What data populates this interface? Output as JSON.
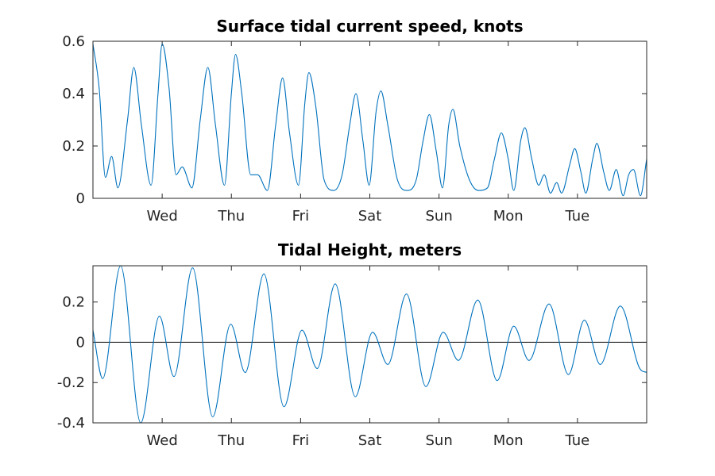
{
  "chart_data": [
    {
      "type": "line",
      "title": "Surface tidal current speed, knots",
      "xlabel": "",
      "ylabel": "",
      "xlim": [
        0,
        8
      ],
      "ylim": [
        0,
        0.6
      ],
      "xticks": [
        {
          "x": 1,
          "label": "Wed"
        },
        {
          "x": 2,
          "label": "Thu"
        },
        {
          "x": 3,
          "label": "Fri"
        },
        {
          "x": 4,
          "label": "Sat"
        },
        {
          "x": 5,
          "label": "Sun"
        },
        {
          "x": 6,
          "label": "Mon"
        },
        {
          "x": 7,
          "label": "Tue"
        }
      ],
      "yticks": [
        {
          "y": 0,
          "label": "0"
        },
        {
          "y": 0.2,
          "label": "0.2"
        },
        {
          "y": 0.4,
          "label": "0.4"
        },
        {
          "y": 0.6,
          "label": "0.6"
        }
      ],
      "zero_line": false,
      "series": [
        {
          "color": "#0072BD",
          "points": [
            [
              0.0,
              0.59
            ],
            [
              0.09,
              0.42
            ],
            [
              0.18,
              0.08
            ],
            [
              0.27,
              0.16
            ],
            [
              0.36,
              0.04
            ],
            [
              0.5,
              0.3
            ],
            [
              0.59,
              0.5
            ],
            [
              0.7,
              0.28
            ],
            [
              0.84,
              0.05
            ],
            [
              0.94,
              0.4
            ],
            [
              1.0,
              0.59
            ],
            [
              1.1,
              0.42
            ],
            [
              1.2,
              0.09
            ],
            [
              1.29,
              0.12
            ],
            [
              1.43,
              0.04
            ],
            [
              1.55,
              0.3
            ],
            [
              1.66,
              0.5
            ],
            [
              1.77,
              0.28
            ],
            [
              1.9,
              0.05
            ],
            [
              2.0,
              0.4
            ],
            [
              2.06,
              0.55
            ],
            [
              2.15,
              0.4
            ],
            [
              2.28,
              0.09
            ],
            [
              2.38,
              0.09
            ],
            [
              2.52,
              0.03
            ],
            [
              2.64,
              0.28
            ],
            [
              2.74,
              0.46
            ],
            [
              2.84,
              0.25
            ],
            [
              2.97,
              0.05
            ],
            [
              3.06,
              0.36
            ],
            [
              3.12,
              0.48
            ],
            [
              3.22,
              0.35
            ],
            [
              3.34,
              0.07
            ],
            [
              3.48,
              0.03
            ],
            [
              3.6,
              0.09
            ],
            [
              3.71,
              0.28
            ],
            [
              3.8,
              0.4
            ],
            [
              3.9,
              0.22
            ],
            [
              3.99,
              0.05
            ],
            [
              4.09,
              0.33
            ],
            [
              4.16,
              0.41
            ],
            [
              4.26,
              0.28
            ],
            [
              4.4,
              0.07
            ],
            [
              4.54,
              0.03
            ],
            [
              4.67,
              0.07
            ],
            [
              4.77,
              0.22
            ],
            [
              4.86,
              0.32
            ],
            [
              4.96,
              0.18
            ],
            [
              5.05,
              0.04
            ],
            [
              5.14,
              0.28
            ],
            [
              5.2,
              0.34
            ],
            [
              5.3,
              0.2
            ],
            [
              5.44,
              0.07
            ],
            [
              5.57,
              0.03
            ],
            [
              5.7,
              0.04
            ],
            [
              5.8,
              0.15
            ],
            [
              5.9,
              0.25
            ],
            [
              6.0,
              0.15
            ],
            [
              6.08,
              0.03
            ],
            [
              6.18,
              0.22
            ],
            [
              6.24,
              0.27
            ],
            [
              6.34,
              0.15
            ],
            [
              6.44,
              0.05
            ],
            [
              6.52,
              0.09
            ],
            [
              6.61,
              0.02
            ],
            [
              6.7,
              0.06
            ],
            [
              6.77,
              0.02
            ],
            [
              6.89,
              0.13
            ],
            [
              6.96,
              0.19
            ],
            [
              7.05,
              0.1
            ],
            [
              7.12,
              0.02
            ],
            [
              7.22,
              0.15
            ],
            [
              7.28,
              0.21
            ],
            [
              7.38,
              0.1
            ],
            [
              7.46,
              0.03
            ],
            [
              7.56,
              0.11
            ],
            [
              7.66,
              0.01
            ],
            [
              7.74,
              0.09
            ],
            [
              7.81,
              0.11
            ],
            [
              7.91,
              0.01
            ],
            [
              8.0,
              0.15
            ]
          ]
        }
      ]
    },
    {
      "type": "line",
      "title": "Tidal Height, meters",
      "xlabel": "",
      "ylabel": "",
      "xlim": [
        0,
        8
      ],
      "ylim": [
        -0.4,
        0.38
      ],
      "xticks": [
        {
          "x": 1,
          "label": "Wed"
        },
        {
          "x": 2,
          "label": "Thu"
        },
        {
          "x": 3,
          "label": "Fri"
        },
        {
          "x": 4,
          "label": "Sat"
        },
        {
          "x": 5,
          "label": "Sun"
        },
        {
          "x": 6,
          "label": "Mon"
        },
        {
          "x": 7,
          "label": "Tue"
        }
      ],
      "yticks": [
        {
          "y": -0.4,
          "label": "-0.4"
        },
        {
          "y": -0.2,
          "label": "-0.2"
        },
        {
          "y": 0,
          "label": "0"
        },
        {
          "y": 0.2,
          "label": "0.2"
        }
      ],
      "zero_line": true,
      "series": [
        {
          "color": "#0072BD",
          "points": [
            [
              0.0,
              0.06
            ],
            [
              0.14,
              -0.18
            ],
            [
              0.4,
              0.38
            ],
            [
              0.69,
              -0.4
            ],
            [
              0.96,
              0.13
            ],
            [
              1.17,
              -0.17
            ],
            [
              1.44,
              0.37
            ],
            [
              1.73,
              -0.37
            ],
            [
              1.99,
              0.09
            ],
            [
              2.2,
              -0.15
            ],
            [
              2.47,
              0.34
            ],
            [
              2.76,
              -0.32
            ],
            [
              3.02,
              0.06
            ],
            [
              3.24,
              -0.13
            ],
            [
              3.5,
              0.29
            ],
            [
              3.79,
              -0.27
            ],
            [
              4.04,
              0.05
            ],
            [
              4.26,
              -0.11
            ],
            [
              4.53,
              0.24
            ],
            [
              4.81,
              -0.22
            ],
            [
              5.06,
              0.05
            ],
            [
              5.28,
              -0.09
            ],
            [
              5.56,
              0.21
            ],
            [
              5.84,
              -0.19
            ],
            [
              6.08,
              0.08
            ],
            [
              6.3,
              -0.09
            ],
            [
              6.59,
              0.19
            ],
            [
              6.87,
              -0.16
            ],
            [
              7.1,
              0.11
            ],
            [
              7.33,
              -0.11
            ],
            [
              7.62,
              0.18
            ],
            [
              7.9,
              -0.13
            ],
            [
              8.0,
              -0.15
            ]
          ]
        }
      ]
    }
  ]
}
